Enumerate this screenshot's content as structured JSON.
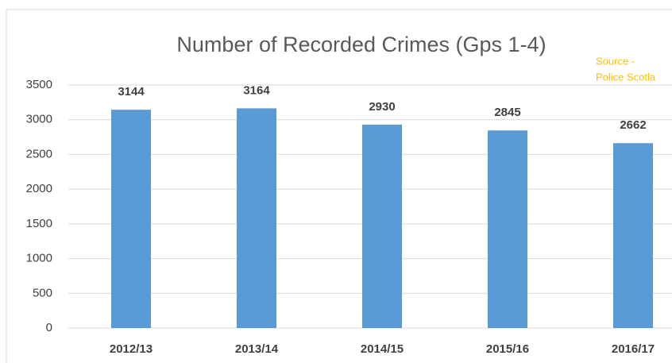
{
  "chart_data": {
    "type": "bar",
    "title": "Number of Recorded Crimes (Gps 1-4)",
    "annotations": [
      "Source -",
      "Police Scotla"
    ],
    "categories": [
      "2012/13",
      "2013/14",
      "2014/15",
      "2015/16",
      "2016/17"
    ],
    "values": [
      3144,
      3164,
      2930,
      2845,
      2662
    ],
    "color": "#5b9bd5",
    "ylim": [
      0,
      3500
    ],
    "yticks": [
      0,
      500,
      1000,
      1500,
      2000,
      2500,
      3000,
      3500
    ],
    "grid": true
  }
}
